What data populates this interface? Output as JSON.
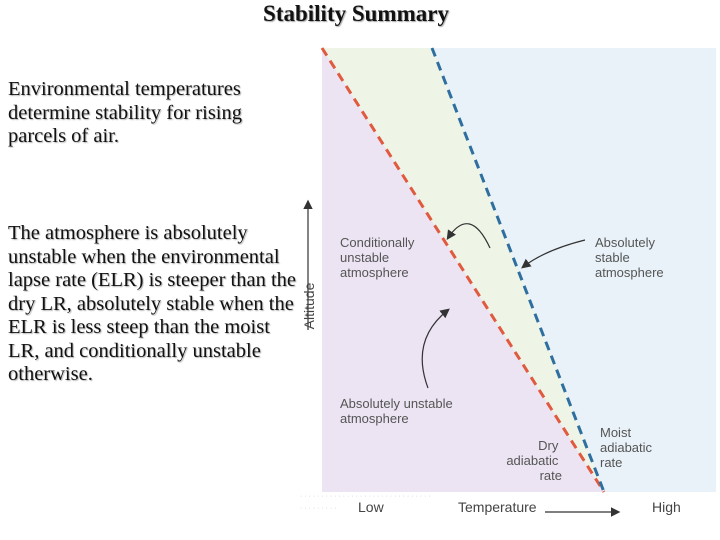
{
  "title": "Stability Summary",
  "paragraphs": [
    "Environmental temperatures determine stability for rising parcels of air.",
    "The atmosphere is absolutely unstable when the environmental lapse rate (ELR) is steeper than the dry LR, absolutely stable when the ELR is less steep than the moist LR, and conditionally unstable otherwise."
  ],
  "diagram": {
    "regions": {
      "conditional": [
        "Conditionally",
        "unstable",
        "atmosphere"
      ],
      "stable": [
        "Absolutely",
        "stable",
        "atmosphere"
      ],
      "unstable": [
        "Absolutely unstable",
        "atmosphere"
      ]
    },
    "lines": {
      "dry": [
        "Dry",
        "adiabatic",
        "rate"
      ],
      "moist": [
        "Moist",
        "adiabatic",
        "rate"
      ]
    },
    "axes": {
      "y_label": "Altitude",
      "x_label": "Temperature",
      "x_low": "Low",
      "x_high": "High"
    },
    "colors": {
      "unstable_fill": "#ece4f3",
      "conditional_fill": "#eef4e6",
      "stable_fill": "#e9f2f9",
      "dry_line": "#e05a3f",
      "moist_line": "#2f6f9f"
    }
  }
}
